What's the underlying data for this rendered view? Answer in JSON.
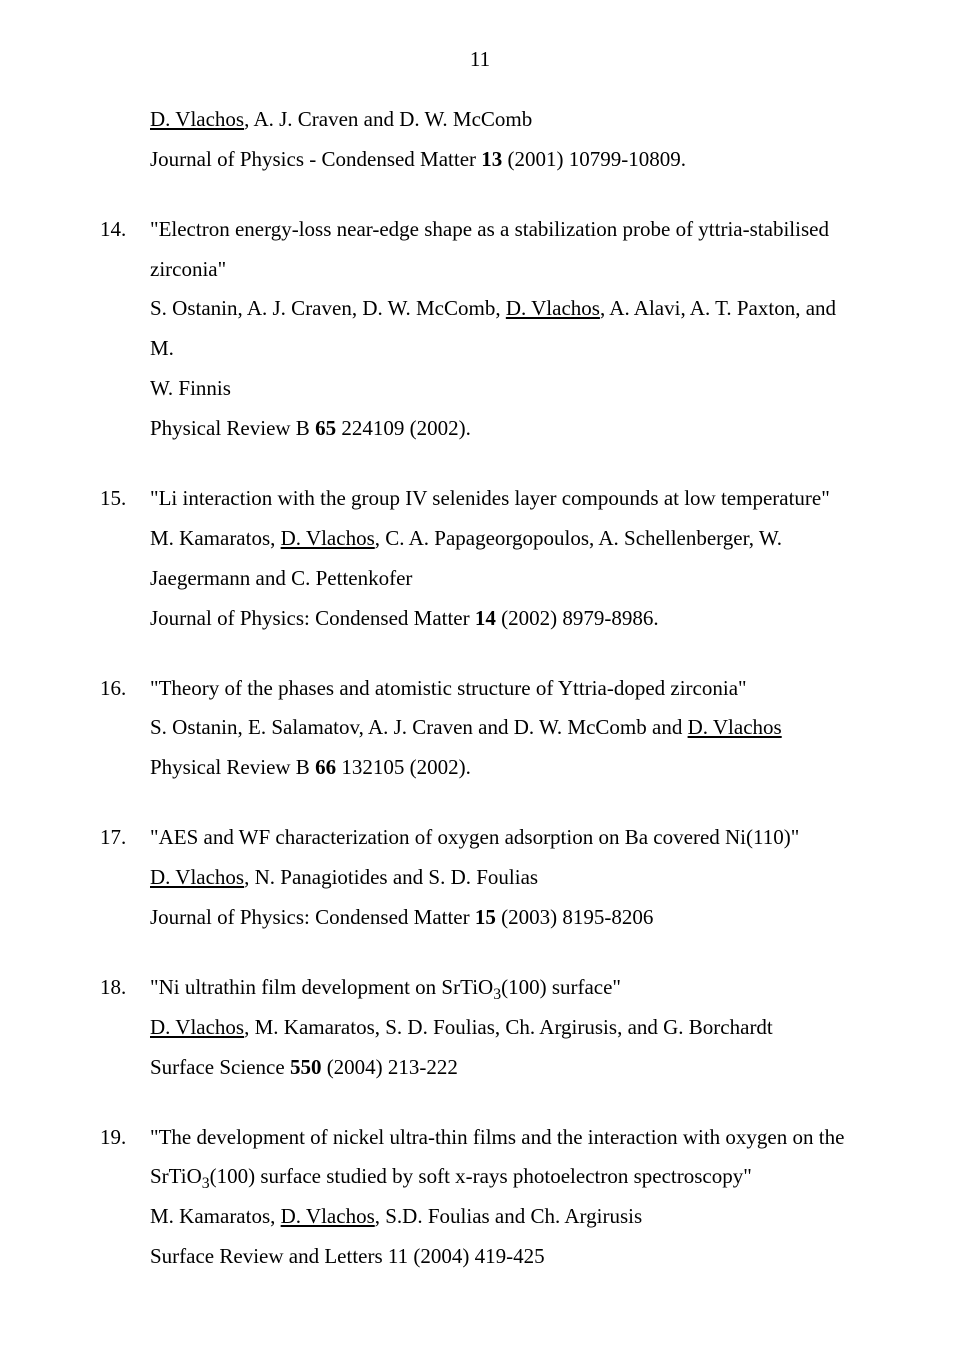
{
  "page_number": "11",
  "entries": [
    {
      "continuation": [
        {
          "segments": [
            {
              "t": "D. Vlachos",
              "u": true
            },
            {
              "t": ", A. J. Craven and D. W. McComb"
            }
          ]
        },
        {
          "segments": [
            {
              "t": "Journal of Physics - Condensed Matter "
            },
            {
              "t": "13",
              "b": true
            },
            {
              "t": " (2001) 10799-10809."
            }
          ]
        }
      ]
    },
    {
      "num": "14.",
      "justify": true,
      "first_line": {
        "segments": [
          {
            "t": "\"Electron energy-loss near-edge shape as a stabilization probe of yttria-stabilised"
          }
        ]
      },
      "rest": [
        {
          "segments": [
            {
              "t": "zirconia\""
            }
          ]
        },
        {
          "segments": [
            {
              "t": "S. Ostanin, A. J. Craven, D. W. McComb, "
            },
            {
              "t": "D. Vlachos",
              "u": true
            },
            {
              "t": ", A. Alavi, A. T. Paxton, and M."
            }
          ]
        },
        {
          "segments": [
            {
              "t": "W. Finnis"
            }
          ]
        },
        {
          "segments": [
            {
              "t": "Physical Review B "
            },
            {
              "t": "65",
              "b": true
            },
            {
              "t": " 224109 (2002)."
            }
          ]
        }
      ]
    },
    {
      "num": "15.",
      "justify": true,
      "first_line": {
        "segments": [
          {
            "t": "\"Li interaction with the group IV selenides layer compounds at low temperature\""
          }
        ]
      },
      "rest": [
        {
          "segments": [
            {
              "t": "M. Kamaratos, "
            },
            {
              "t": "D. Vlachos",
              "u": true
            },
            {
              "t": ", C. A. Papageorgopoulos, A. Schellenberger, W."
            }
          ]
        },
        {
          "segments": [
            {
              "t": "Jaegermann and C. Pettenkofer"
            }
          ]
        },
        {
          "segments": [
            {
              "t": "Journal of Physics: Condensed Matter "
            },
            {
              "t": "14",
              "b": true
            },
            {
              "t": " (2002) 8979-8986."
            }
          ]
        }
      ]
    },
    {
      "num": "16.",
      "first_line": {
        "segments": [
          {
            "t": "\"Theory of the phases and atomistic structure of Yttria-doped zirconia\""
          }
        ]
      },
      "rest": [
        {
          "segments": [
            {
              "t": "S. Ostanin, E. Salamatov, A. J. Craven and D. W. McComb and "
            },
            {
              "t": "D. Vlachos",
              "u": true
            }
          ]
        },
        {
          "segments": [
            {
              "t": "Physical Review B "
            },
            {
              "t": "66",
              "b": true
            },
            {
              "t": " 132105 (2002)."
            }
          ]
        }
      ]
    },
    {
      "num": "17.",
      "first_line": {
        "segments": [
          {
            "t": "\"AES and WF characterization of oxygen adsorption on Ba covered Ni(110)\""
          }
        ]
      },
      "rest": [
        {
          "segments": [
            {
              "t": "D. Vlachos",
              "u": true
            },
            {
              "t": ", N. Panagiotides and S. D. Foulias"
            }
          ]
        },
        {
          "segments": [
            {
              "t": "Journal of Physics: Condensed Matter "
            },
            {
              "t": "15",
              "b": true
            },
            {
              "t": " (2003) 8195-8206"
            }
          ]
        }
      ]
    },
    {
      "num": "18.",
      "first_line": {
        "segments": [
          {
            "t": "\"Ni ultrathin film development on SrTiO"
          },
          {
            "t": "3",
            "sub": true
          },
          {
            "t": "(100) surface\""
          }
        ]
      },
      "rest": [
        {
          "segments": [
            {
              "t": "D. Vlachos",
              "u": true
            },
            {
              "t": ", M. Kamaratos, S. D. Foulias, Ch. Argirusis, and G. Borchardt"
            }
          ]
        },
        {
          "segments": [
            {
              "t": "Surface Science "
            },
            {
              "t": "550",
              "b": true
            },
            {
              "t": " (2004) 213-222"
            }
          ]
        }
      ]
    },
    {
      "num": "19.",
      "justify": true,
      "first_line": {
        "segments": [
          {
            "t": "\"The development of nickel ultra-thin films and the interaction with oxygen on the"
          }
        ]
      },
      "rest": [
        {
          "segments": [
            {
              "t": "SrTiO"
            },
            {
              "t": "3",
              "sub": true
            },
            {
              "t": "(100) surface studied by soft x-rays photoelectron spectroscopy\""
            }
          ]
        },
        {
          "segments": [
            {
              "t": "M. Kamaratos, "
            },
            {
              "t": "D. Vlachos",
              "u": true
            },
            {
              "t": ", S.D. Foulias and Ch. Argirusis"
            }
          ]
        },
        {
          "segments": [
            {
              "t": "Surface Review and Letters 11 (2004) 419-425"
            }
          ]
        }
      ]
    }
  ]
}
